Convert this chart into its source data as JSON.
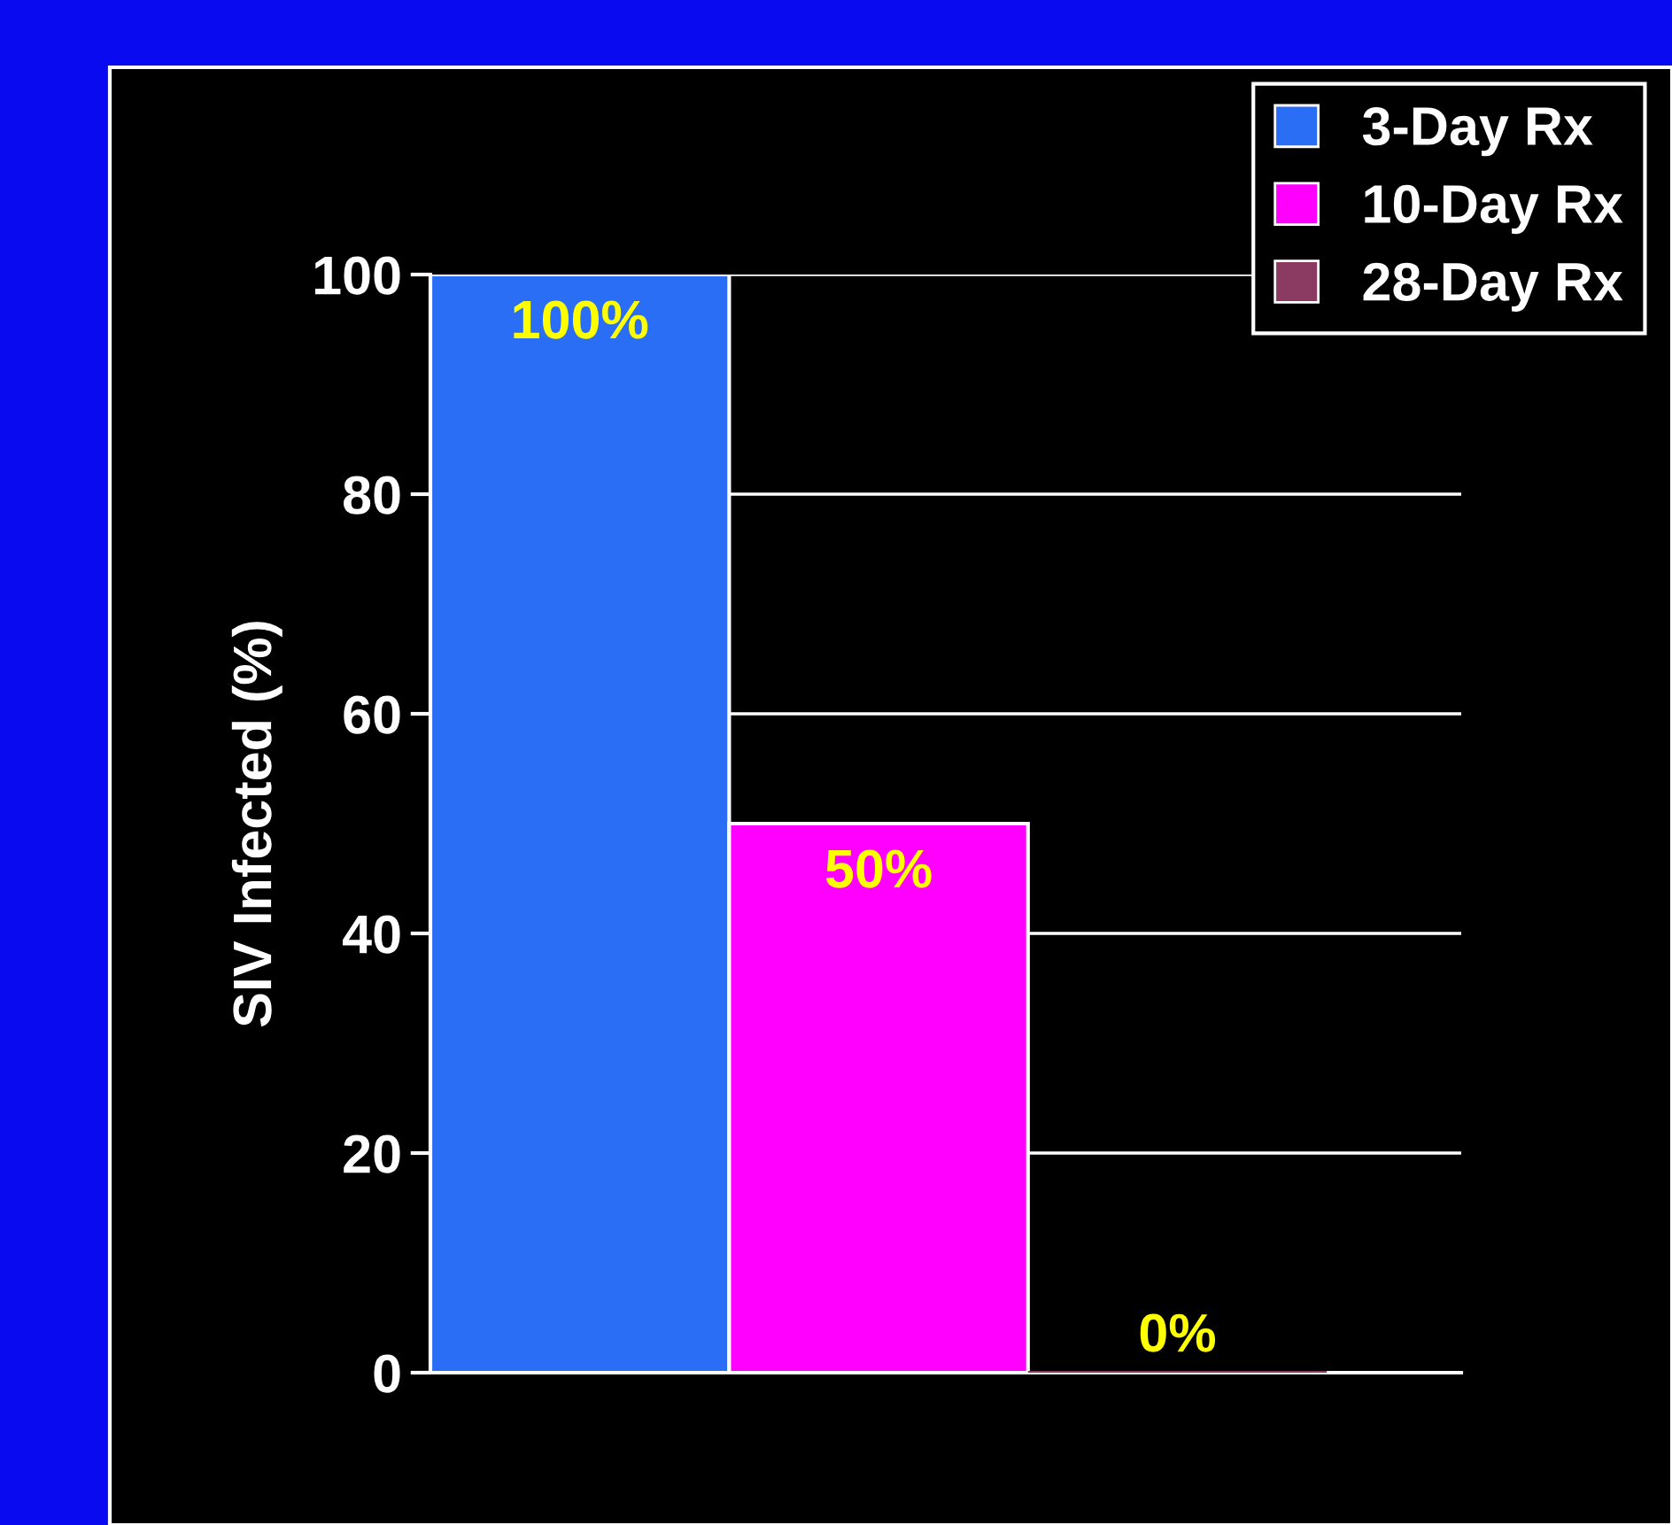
{
  "chart_data": {
    "type": "bar",
    "ylabel": "SIV Infected (%)",
    "categories": [
      null,
      null,
      null
    ],
    "series": [
      {
        "name": "3-Day Rx",
        "color": "#2a6ef5",
        "values": [
          100,
          null,
          null
        ],
        "value_labels": [
          "100%",
          null,
          null
        ]
      },
      {
        "name": "10-Day Rx",
        "color": "#ff00ff",
        "values": [
          null,
          50,
          null
        ],
        "value_labels": [
          null,
          "50%",
          null
        ]
      },
      {
        "name": "28-Day Rx",
        "color": "#8b3a62",
        "values": [
          null,
          null,
          0
        ],
        "value_labels": [
          null,
          null,
          "0%"
        ]
      }
    ],
    "ylim": [
      0,
      100
    ],
    "yticks": [
      0,
      20,
      40,
      60,
      80,
      100
    ],
    "grid": "y",
    "legend": "top right"
  }
}
